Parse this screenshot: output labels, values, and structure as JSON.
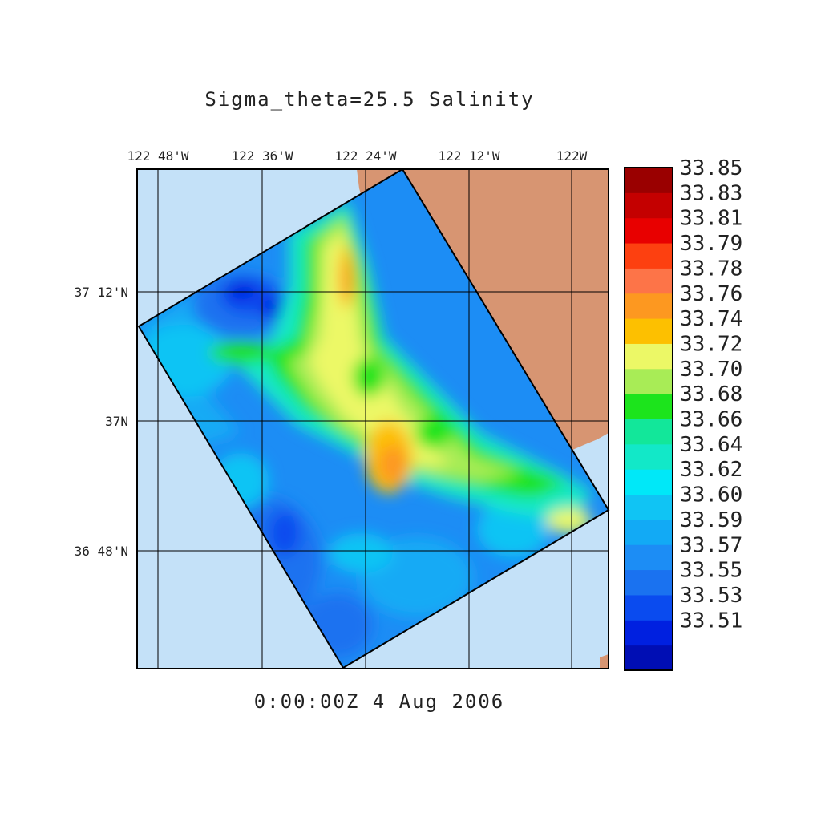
{
  "title": "Sigma_theta=25.5 Salinity",
  "timestamp": "0:00:00Z   4 Aug 2006",
  "colors": {
    "ocean_background": "#c4e1f8",
    "land": "#d79572",
    "grid": "#000000",
    "domain_outline": "#000000"
  },
  "chart_data": {
    "type": "heatmap",
    "variable": "Salinity",
    "surface": "Sigma_theta=25.5",
    "x_axis_ticks": [
      "122 48'W",
      "122 36'W",
      "122 24'W",
      "122 12'W",
      "122W"
    ],
    "y_axis_ticks": [
      "37 12'N",
      "37N",
      "36 48'N"
    ],
    "colorbar": {
      "levels": [
        {
          "label": "",
          "color": "#000eb4"
        },
        {
          "label": "33.51",
          "color": "#0020e0"
        },
        {
          "label": "33.53",
          "color": "#0a4bef"
        },
        {
          "label": "33.55",
          "color": "#1a72f0"
        },
        {
          "label": "33.57",
          "color": "#1c8df5"
        },
        {
          "label": "33.59",
          "color": "#12aaf5"
        },
        {
          "label": "33.60",
          "color": "#10c4f4"
        },
        {
          "label": "33.62",
          "color": "#00e8f8"
        },
        {
          "label": "33.64",
          "color": "#12e8c8"
        },
        {
          "label": "33.66",
          "color": "#12e79a"
        },
        {
          "label": "33.68",
          "color": "#1ce41c"
        },
        {
          "label": "33.70",
          "color": "#a8ec56"
        },
        {
          "label": "33.72",
          "color": "#ecf866"
        },
        {
          "label": "33.74",
          "color": "#fdc000"
        },
        {
          "label": "33.76",
          "color": "#fd9820"
        },
        {
          "label": "33.78",
          "color": "#fd7448"
        },
        {
          "label": "33.79",
          "color": "#fd4010"
        },
        {
          "label": "33.81",
          "color": "#e80000"
        },
        {
          "label": "33.83",
          "color": "#c40000"
        },
        {
          "label": "33.85",
          "color": "#9a0000"
        }
      ]
    }
  }
}
